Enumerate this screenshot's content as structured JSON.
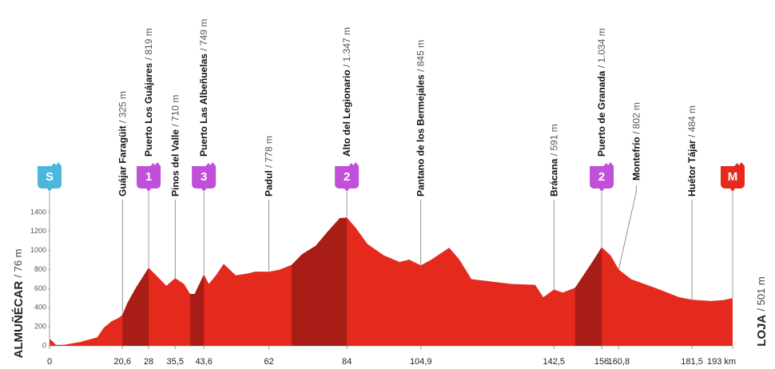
{
  "chart_data": {
    "type": "area",
    "color": "#e42a1d",
    "climb_color": "#a81d16",
    "start": {
      "name": "ALMUÑÉCAR",
      "elevation": "/ 76 m"
    },
    "finish": {
      "name": "LOJA",
      "elevation": "/ 501 m"
    },
    "xlim": [
      0,
      193
    ],
    "ylim": [
      0,
      1400
    ],
    "yticks": [
      0,
      200,
      400,
      600,
      800,
      1000,
      1200,
      1400
    ],
    "xticks": [
      0,
      {
        "value": 20.6,
        "label": "20,6"
      },
      28,
      {
        "value": 35.5,
        "label": "35,5"
      },
      {
        "value": 43.6,
        "label": "43,6"
      },
      62,
      84,
      {
        "value": 104.9,
        "label": "104,9"
      },
      {
        "value": 142.5,
        "label": "142,5"
      },
      156,
      {
        "value": 160.8,
        "label": "160,8"
      },
      {
        "value": 181.5,
        "label": "181,5"
      },
      {
        "value": 193,
        "label": "193 km"
      }
    ],
    "x": [
      0,
      1.8,
      4,
      8.6,
      13.5,
      15.3,
      17.6,
      19.4,
      20.6,
      22,
      24.4,
      28,
      31.2,
      33,
      35.5,
      38,
      39.7,
      41,
      43.6,
      45,
      47,
      49.2,
      52.6,
      56,
      58.2,
      62,
      65,
      68.4,
      71.3,
      75.2,
      78.6,
      82,
      84,
      86.5,
      89.8,
      94.4,
      98.9,
      101.6,
      104.9,
      107.9,
      112.9,
      115.8,
      119.2,
      123.7,
      130.5,
      137.2,
      139.5,
      142.5,
      145,
      148.5,
      153,
      156,
      158.5,
      160.8,
      164.3,
      171,
      177.9,
      181.5,
      187,
      190.3,
      193
    ],
    "values": [
      76,
      10,
      10,
      40,
      90,
      190,
      260,
      290,
      325,
      450,
      610,
      819,
      700,
      630,
      710,
      650,
      545,
      545,
      749,
      650,
      740,
      860,
      740,
      760,
      780,
      778,
      800,
      850,
      960,
      1050,
      1200,
      1340,
      1347,
      1240,
      1070,
      950,
      880,
      905,
      845,
      905,
      1030,
      905,
      700,
      680,
      650,
      640,
      510,
      591,
      560,
      610,
      860,
      1034,
      950,
      802,
      700,
      610,
      510,
      484,
      470,
      480,
      501
    ],
    "climbs": [
      {
        "from": 20.6,
        "to": 28
      },
      {
        "from": 39.7,
        "to": 43.6
      },
      {
        "from": 68.4,
        "to": 84
      },
      {
        "from": 148.5,
        "to": 156
      }
    ],
    "waypoints": [
      {
        "name": "Guájar Faragüit",
        "elevation": "/ 325 m",
        "km": 20.6,
        "marker": false
      },
      {
        "name": "Puerto Los Guájares",
        "elevation": "/ 819 m",
        "km": 28,
        "marker": true
      },
      {
        "name": "Pinos del Valle",
        "elevation": "/ 710 m",
        "km": 35.5,
        "marker": false
      },
      {
        "name": "Puerto Las Albeñuelas",
        "elevation": "/ 749 m",
        "km": 43.6,
        "marker": true
      },
      {
        "name": "Padul",
        "elevation": "/ 778 m",
        "km": 62,
        "marker": false
      },
      {
        "name": "Alto del Legionario",
        "elevation": "/ 1.347 m",
        "km": 84,
        "marker": true
      },
      {
        "name": "Pantano de los Bermejales",
        "elevation": "/ 845 m",
        "km": 104.9,
        "marker": false
      },
      {
        "name": "Brácana",
        "elevation": "/ 591 m",
        "km": 142.5,
        "marker": false
      },
      {
        "name": "Puerto de Granada",
        "elevation": "/ 1.034 m",
        "km": 156,
        "marker": true
      },
      {
        "name": "Montefrío",
        "elevation": "/ 802 m",
        "km": 160.8,
        "marker": false,
        "offset": true
      },
      {
        "name": "Huétor Tájar",
        "elevation": "/ 484 m",
        "km": 181.5,
        "marker": false
      }
    ],
    "markers": [
      {
        "label": "S",
        "km": 0,
        "color": "#4cb6dc"
      },
      {
        "label": "1",
        "km": 28,
        "color": "#c04fd9"
      },
      {
        "label": "3",
        "km": 43.6,
        "color": "#c04fd9"
      },
      {
        "label": "2",
        "km": 84,
        "color": "#c04fd9"
      },
      {
        "label": "2",
        "km": 156,
        "color": "#c04fd9"
      },
      {
        "label": "M",
        "km": 193,
        "color": "#e42a1d"
      }
    ]
  }
}
